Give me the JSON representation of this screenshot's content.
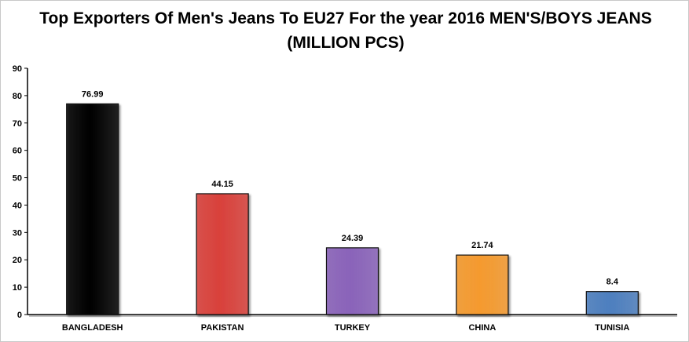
{
  "chart_data": {
    "type": "bar",
    "title": "Top Exporters Of Men's Jeans To EU27 For the year 2016 MEN'S/BOYS JEANS (MILLION PCS)",
    "categories": [
      "BANGLADESH",
      "PAKISTAN",
      "TURKEY",
      "CHINA",
      "TUNISIA"
    ],
    "values": [
      76.99,
      44.15,
      24.39,
      21.74,
      8.4
    ],
    "data_labels": [
      "76.99",
      "44.15",
      "24.39",
      "21.74",
      "8.4"
    ],
    "colors": [
      "#000000",
      "#d9413b",
      "#8a63ba",
      "#f59a2e",
      "#4d7fbf"
    ],
    "yticks": [
      "0",
      "10",
      "20",
      "30",
      "40",
      "50",
      "60",
      "70",
      "80",
      "90"
    ],
    "ylim": [
      0,
      90
    ],
    "xlabel": "",
    "ylabel": "",
    "grid": false,
    "legend": "none"
  }
}
